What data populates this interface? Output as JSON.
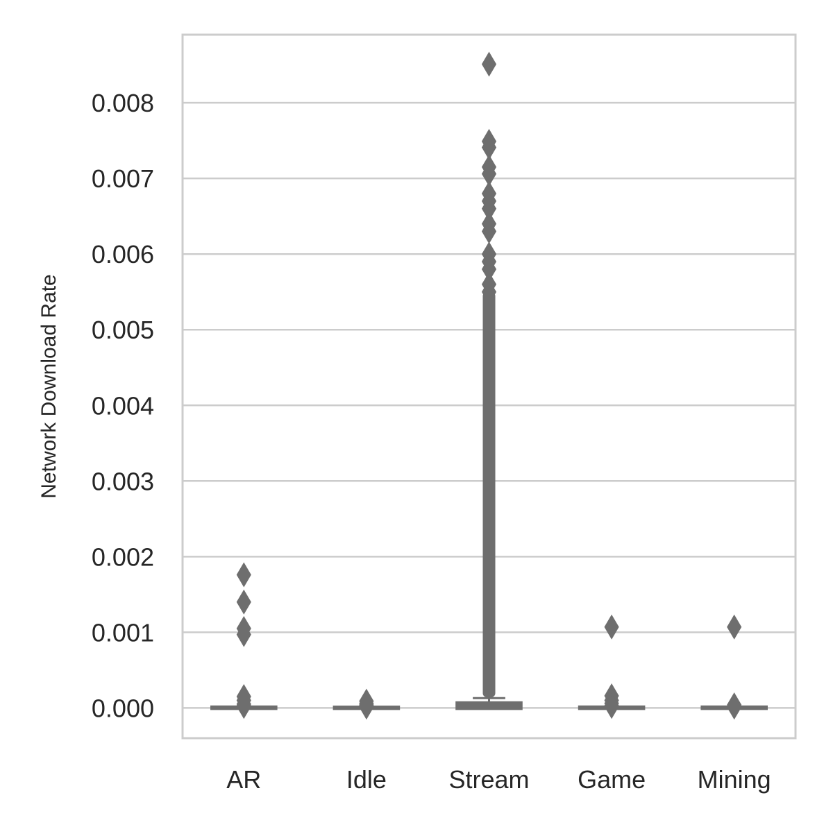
{
  "chart_data": {
    "type": "box",
    "ylabel": "Network Download Rate",
    "xlabel": "",
    "ylim": [
      -0.0004,
      0.0089
    ],
    "yticks": [
      "0.000",
      "0.001",
      "0.002",
      "0.003",
      "0.004",
      "0.005",
      "0.006",
      "0.007",
      "0.008"
    ],
    "ytick_values": [
      0,
      0.001,
      0.002,
      0.003,
      0.004,
      0.005,
      0.006,
      0.007,
      0.008
    ],
    "grid": true,
    "color": "#6e6e6e",
    "categories": [
      "AR",
      "Idle",
      "Stream",
      "Game",
      "Mining"
    ],
    "boxes": [
      {
        "category": "AR",
        "q1": 0,
        "median": 0,
        "q3": 5e-06,
        "whisker_low": 0,
        "whisker_high": 1e-05,
        "outliers": [
          0.00176,
          0.0014,
          0.00105,
          0.00097,
          0.00015,
          0.0001,
          5e-05,
          3e-05,
          2e-05
        ]
      },
      {
        "category": "Idle",
        "q1": 0,
        "median": 0,
        "q3": 3e-06,
        "whisker_low": 0,
        "whisker_high": 5e-06,
        "outliers": [
          9e-05,
          6e-05,
          4e-05,
          3e-05,
          2e-05,
          1e-05
        ]
      },
      {
        "category": "Stream",
        "q1": 0,
        "median": 1e-05,
        "q3": 6e-05,
        "whisker_low": 0,
        "whisker_high": 0.00013,
        "outliers": [
          0.00851,
          0.00749,
          0.00741,
          0.00715,
          0.00706,
          0.0068,
          0.0067,
          0.0066,
          0.0064,
          0.0063,
          0.006,
          0.0059,
          0.0058,
          0.0056,
          0.0055
        ],
        "outlier_band": [
          0.00014,
          0.0055
        ]
      },
      {
        "category": "Game",
        "q1": 0,
        "median": 0,
        "q3": 5e-06,
        "whisker_low": 0,
        "whisker_high": 1e-05,
        "outliers": [
          0.00107,
          0.00016,
          0.0001,
          6e-05,
          3e-05,
          2e-05
        ]
      },
      {
        "category": "Mining",
        "q1": 0,
        "median": 0,
        "q3": 5e-06,
        "whisker_low": 0,
        "whisker_high": 1e-05,
        "outliers": [
          0.00107,
          4e-05,
          2e-05,
          1e-05
        ]
      }
    ]
  }
}
